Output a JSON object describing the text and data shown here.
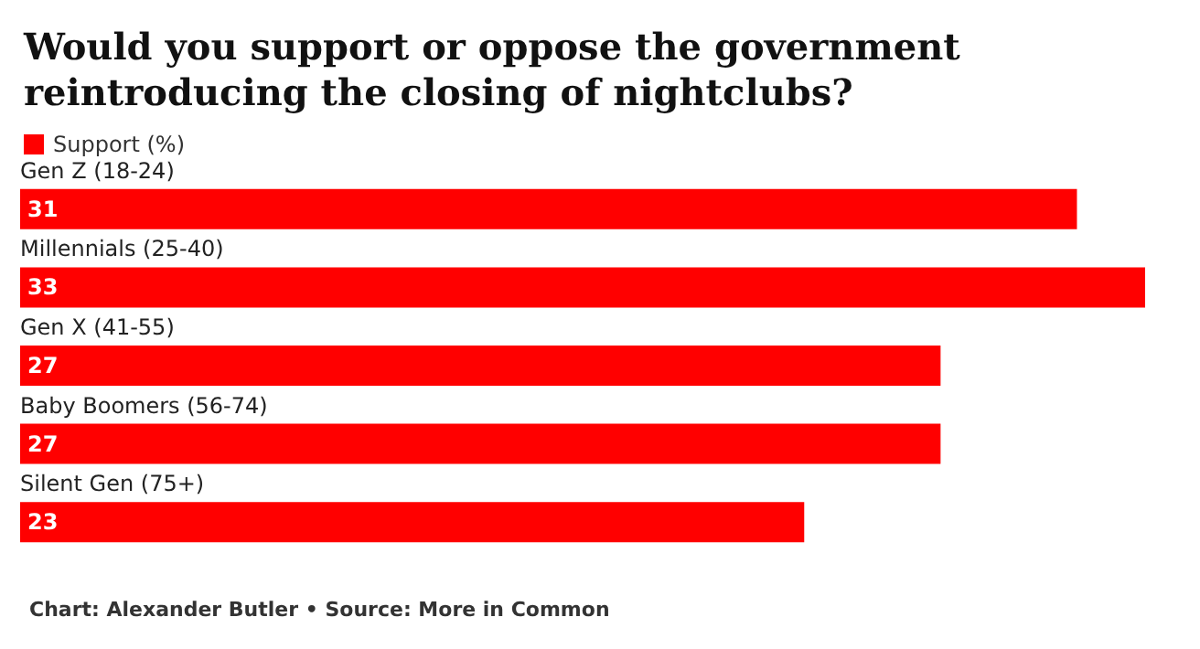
{
  "chart_data": {
    "type": "bar",
    "orientation": "horizontal",
    "title": "Would you support or oppose the government reintroducing the closing of nightclubs?",
    "categories": [
      "Gen Z (18-24)",
      "Millennials (25-40)",
      "Gen X (41-55)",
      "Baby Boomers (56-74)",
      "Silent Gen (75+)"
    ],
    "series": [
      {
        "name": "Support (%)",
        "color": "#ff0000",
        "values": [
          31,
          33,
          27,
          27,
          23
        ]
      }
    ],
    "data_labels": true,
    "legend": "top left",
    "annotations": [
      "Chart: Alexander Butler • Source: More in Common"
    ]
  }
}
